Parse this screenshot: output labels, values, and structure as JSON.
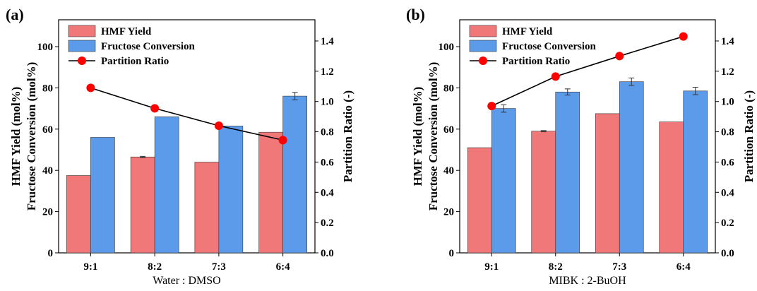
{
  "chart_data": [
    {
      "type": "bar",
      "panel_label": "(a)",
      "categories": [
        "9:1",
        "8:2",
        "7:3",
        "6:4"
      ],
      "xlabel": "Water : DMSO",
      "ylabel_lines": [
        "HMF Yield (mol%)",
        "Fructose Conversion (mol%)"
      ],
      "y2label": "Partition Ratio (-)",
      "ylim": [
        0,
        100
      ],
      "yticks": [
        0,
        20,
        40,
        60,
        80,
        100
      ],
      "y2lim": [
        0,
        1.4
      ],
      "y2ticks": [
        "0.0",
        "0.2",
        "0.4",
        "0.6",
        "0.8",
        "1.0",
        "1.2",
        "1.4"
      ],
      "series": [
        {
          "name": "HMF Yield",
          "kind": "bar",
          "color": "#F07878",
          "values": [
            37.5,
            46.5,
            44,
            58.5
          ],
          "errors": [
            0,
            0.3,
            0,
            0
          ]
        },
        {
          "name": "Fructose Conversion",
          "kind": "bar",
          "color": "#5B9BEA",
          "values": [
            56,
            66,
            61.5,
            76
          ],
          "errors": [
            0,
            0,
            0,
            1.8
          ]
        },
        {
          "name": "Partition Ratio",
          "kind": "line",
          "axis": "right",
          "color": "#000000",
          "marker_color": "#FF0000",
          "values": [
            1.09,
            0.955,
            0.84,
            0.745
          ]
        }
      ],
      "legend_position": "top-left"
    },
    {
      "type": "bar",
      "panel_label": "(b)",
      "categories": [
        "9:1",
        "8:2",
        "7:3",
        "6:4"
      ],
      "xlabel": "MIBK : 2-BuOH",
      "ylabel_lines": [
        "HMF Yield (mol%)",
        "Fructose Conversion (mol%)"
      ],
      "y2label": "Partition Ratio (-)",
      "ylim": [
        0,
        100
      ],
      "yticks": [
        0,
        20,
        40,
        60,
        80,
        100
      ],
      "y2lim": [
        0,
        1.4
      ],
      "y2ticks": [
        "0.0",
        "0.2",
        "0.4",
        "0.6",
        "0.8",
        "1.0",
        "1.2",
        "1.4"
      ],
      "series": [
        {
          "name": "HMF Yield",
          "kind": "bar",
          "color": "#F07878",
          "values": [
            51,
            59,
            67.5,
            63.5
          ],
          "errors": [
            0,
            0.3,
            0,
            0
          ]
        },
        {
          "name": "Fructose Conversion",
          "kind": "bar",
          "color": "#5B9BEA",
          "values": [
            70,
            78,
            83,
            78.5
          ],
          "errors": [
            1.8,
            1.5,
            1.8,
            1.8
          ]
        },
        {
          "name": "Partition Ratio",
          "kind": "line",
          "axis": "right",
          "color": "#000000",
          "marker_color": "#FF0000",
          "values": [
            0.97,
            1.165,
            1.3,
            1.43
          ]
        }
      ],
      "legend_position": "top-left"
    }
  ]
}
